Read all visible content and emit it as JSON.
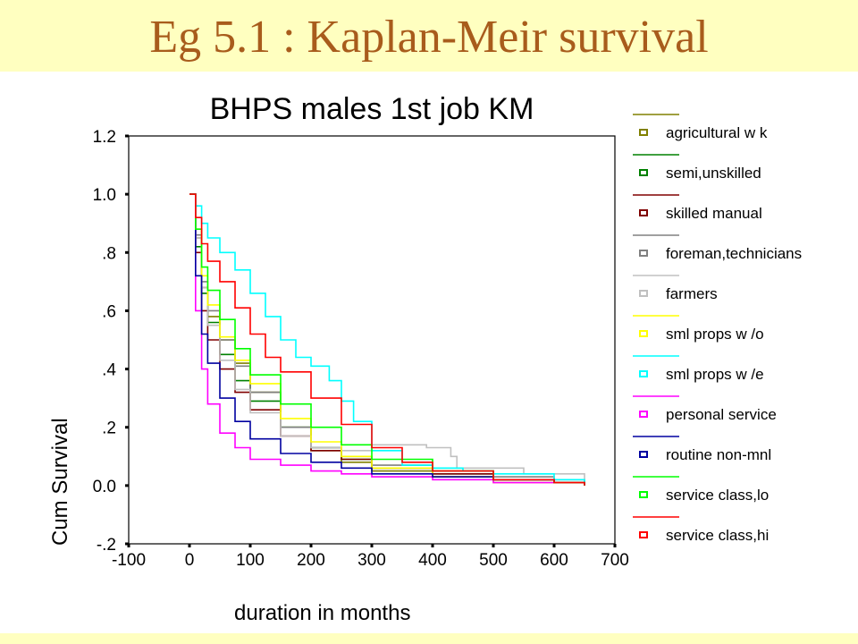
{
  "slide": {
    "title": "Eg 5.1 : Kaplan-Meir survival",
    "banner_color": "#ffffc0",
    "title_color": "#a85c1c"
  },
  "chart_data": {
    "type": "line",
    "title": "BHPS males 1st job KM",
    "xlabel": "duration in months",
    "ylabel": "Cum Survival",
    "xlim": [
      -100,
      700
    ],
    "ylim": [
      -0.2,
      1.2
    ],
    "x_ticks": [
      -100,
      0,
      100,
      200,
      300,
      400,
      500,
      600,
      700
    ],
    "x_tick_labels": [
      "-100",
      "0",
      "100",
      "200",
      "300",
      "400",
      "500",
      "600",
      "700"
    ],
    "y_ticks": [
      -0.2,
      0.0,
      0.2,
      0.4,
      0.6,
      0.8,
      1.0,
      1.2
    ],
    "y_tick_labels": [
      "-.2",
      "0.0",
      ".2",
      ".4",
      ".6",
      ".8",
      "1.0",
      "1.2"
    ],
    "legend_position": "right",
    "grid": false,
    "series": [
      {
        "name": "agricultural w k",
        "color": "#808000",
        "x": [
          0,
          10,
          20,
          30,
          50,
          75,
          100,
          150,
          200,
          250,
          300,
          400,
          500,
          600,
          650
        ],
        "y": [
          1.0,
          0.85,
          0.68,
          0.58,
          0.5,
          0.42,
          0.32,
          0.2,
          0.12,
          0.08,
          0.05,
          0.03,
          0.02,
          0.01,
          0.0
        ]
      },
      {
        "name": "semi,unskilled",
        "color": "#008000",
        "x": [
          0,
          10,
          20,
          30,
          50,
          75,
          100,
          150,
          200,
          250,
          300,
          400,
          500,
          600,
          650
        ],
        "y": [
          1.0,
          0.82,
          0.66,
          0.56,
          0.45,
          0.36,
          0.29,
          0.2,
          0.13,
          0.09,
          0.06,
          0.04,
          0.02,
          0.01,
          0.0
        ]
      },
      {
        "name": "skilled manual",
        "color": "#800000",
        "x": [
          0,
          10,
          20,
          30,
          50,
          75,
          100,
          150,
          200,
          250,
          300,
          400,
          500,
          600,
          650
        ],
        "y": [
          1.0,
          0.8,
          0.6,
          0.5,
          0.4,
          0.32,
          0.26,
          0.17,
          0.12,
          0.09,
          0.06,
          0.04,
          0.02,
          0.01,
          0.0
        ]
      },
      {
        "name": "foreman,technicians",
        "color": "#808080",
        "x": [
          0,
          10,
          20,
          30,
          50,
          75,
          100,
          150,
          200,
          250,
          300,
          400,
          500,
          600,
          650
        ],
        "y": [
          1.0,
          0.86,
          0.7,
          0.6,
          0.5,
          0.41,
          0.32,
          0.2,
          0.13,
          0.1,
          0.07,
          0.05,
          0.03,
          0.02,
          0.0
        ]
      },
      {
        "name": "farmers",
        "color": "#c0c0c0",
        "x": [
          0,
          10,
          20,
          30,
          50,
          75,
          100,
          150,
          200,
          250,
          300,
          350,
          390,
          430,
          440,
          550,
          650
        ],
        "y": [
          1.0,
          0.85,
          0.68,
          0.55,
          0.43,
          0.33,
          0.25,
          0.17,
          0.13,
          0.12,
          0.14,
          0.14,
          0.13,
          0.1,
          0.06,
          0.04,
          0.0
        ]
      },
      {
        "name": "sml props w /o",
        "color": "#ffff00",
        "x": [
          0,
          10,
          20,
          30,
          50,
          75,
          100,
          150,
          200,
          250,
          300,
          400,
          500,
          600,
          650
        ],
        "y": [
          1.0,
          0.88,
          0.72,
          0.62,
          0.51,
          0.43,
          0.35,
          0.23,
          0.15,
          0.1,
          0.06,
          0.03,
          0.01,
          0.01,
          0.0
        ]
      },
      {
        "name": "sml props w /e",
        "color": "#00ffff",
        "x": [
          0,
          10,
          20,
          30,
          50,
          75,
          100,
          125,
          150,
          175,
          200,
          230,
          250,
          270,
          300,
          350,
          400,
          450,
          500,
          600,
          650
        ],
        "y": [
          1.0,
          0.96,
          0.9,
          0.85,
          0.8,
          0.74,
          0.66,
          0.58,
          0.5,
          0.44,
          0.41,
          0.36,
          0.29,
          0.22,
          0.12,
          0.07,
          0.06,
          0.05,
          0.04,
          0.02,
          0.0
        ]
      },
      {
        "name": "personal service",
        "color": "#ff00ff",
        "x": [
          0,
          10,
          20,
          30,
          50,
          75,
          100,
          150,
          200,
          250,
          300,
          400,
          500,
          600,
          650
        ],
        "y": [
          1.0,
          0.6,
          0.4,
          0.28,
          0.18,
          0.13,
          0.09,
          0.07,
          0.05,
          0.04,
          0.03,
          0.02,
          0.01,
          0.01,
          0.0
        ]
      },
      {
        "name": "routine non-mnl",
        "color": "#0000a0",
        "x": [
          0,
          10,
          20,
          30,
          50,
          75,
          100,
          150,
          200,
          250,
          300,
          400,
          500,
          600,
          650
        ],
        "y": [
          1.0,
          0.72,
          0.52,
          0.42,
          0.3,
          0.22,
          0.16,
          0.11,
          0.08,
          0.06,
          0.04,
          0.03,
          0.02,
          0.01,
          0.0
        ]
      },
      {
        "name": "service class,lo",
        "color": "#00ff00",
        "x": [
          0,
          10,
          20,
          30,
          50,
          75,
          100,
          150,
          200,
          250,
          300,
          400,
          500,
          600,
          650
        ],
        "y": [
          1.0,
          0.88,
          0.75,
          0.67,
          0.57,
          0.47,
          0.38,
          0.28,
          0.2,
          0.14,
          0.09,
          0.05,
          0.02,
          0.01,
          0.0
        ]
      },
      {
        "name": "service class,hi",
        "color": "#ff0000",
        "x": [
          0,
          10,
          20,
          30,
          50,
          75,
          100,
          125,
          150,
          200,
          250,
          300,
          350,
          400,
          500,
          600,
          650
        ],
        "y": [
          1.0,
          0.92,
          0.83,
          0.77,
          0.7,
          0.61,
          0.52,
          0.44,
          0.39,
          0.3,
          0.21,
          0.13,
          0.08,
          0.05,
          0.02,
          0.01,
          0.0
        ]
      }
    ]
  }
}
